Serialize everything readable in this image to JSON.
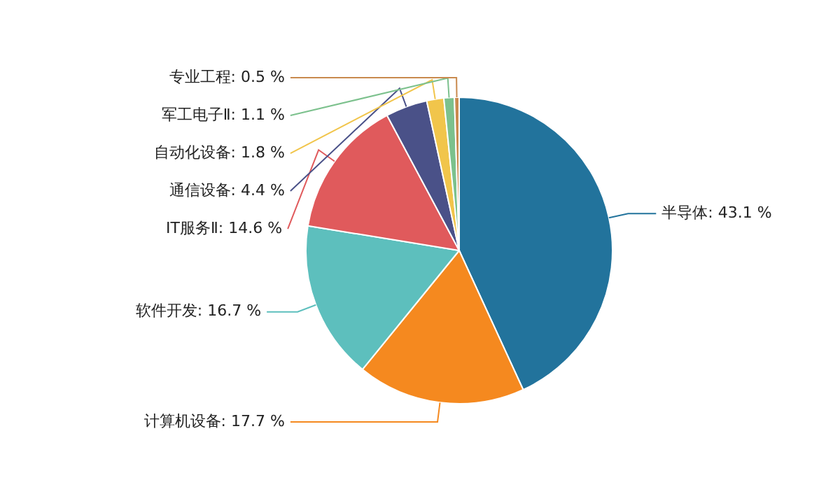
{
  "chart_data": {
    "type": "pie",
    "categories": [
      "半导体",
      "计算机设备",
      "软件开发",
      "IT服务Ⅱ",
      "通信设备",
      "自动化设备",
      "军工电子Ⅱ",
      "专业工程"
    ],
    "values": [
      43.1,
      17.7,
      16.7,
      14.6,
      4.4,
      1.8,
      1.1,
      0.5
    ],
    "value_labels": [
      "43.1 %",
      "17.7 %",
      "16.7 %",
      "14.6 %",
      "4.4 %",
      "1.8 %",
      "1.1 %",
      "0.5 %"
    ],
    "colors": [
      "#22739c",
      "#f5891f",
      "#5dbfbd",
      "#e05a5c",
      "#4a5188",
      "#f1c54b",
      "#7cc18d",
      "#c98a4e"
    ],
    "legend": false
  }
}
